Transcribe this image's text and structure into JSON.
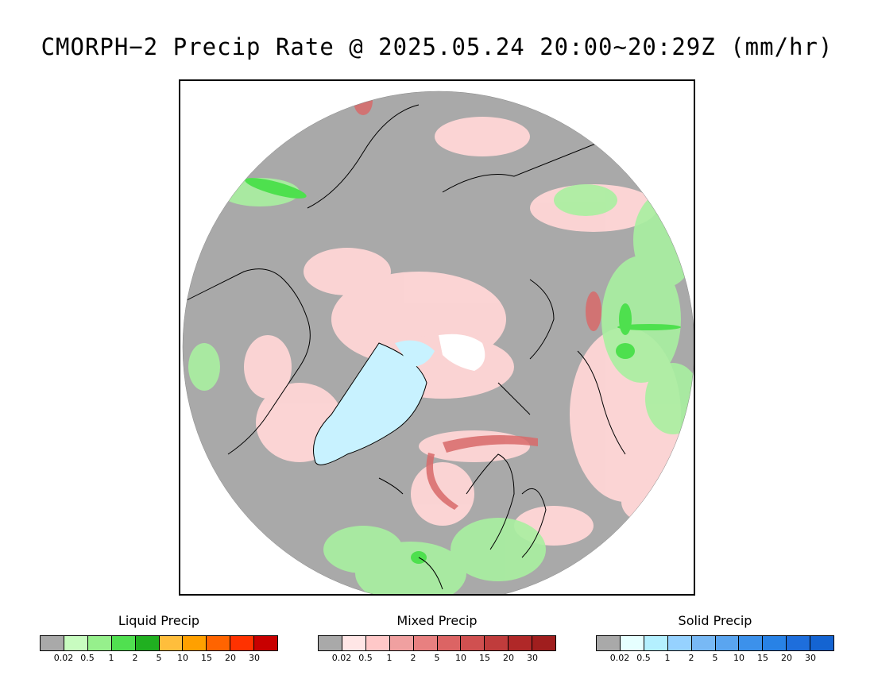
{
  "title": "CMORPH−2 Precip Rate @ 2025.05.24 20:00~20:29Z (mm/hr)",
  "colors": {
    "no_precip": "#a9a9a9",
    "ocean_gray": "#a6a6a6",
    "coast": "#000000",
    "pink": "#ffd6d6",
    "light_green": "#a8f0a0",
    "green": "#4ee04e",
    "red_mixed": "#d86a6a",
    "light_blue": "#c8f2ff",
    "polar_cap": "#ffffff"
  },
  "legends": [
    {
      "title": "Liquid Precip",
      "colors": [
        "#a9a9a9",
        "#c8fcc0",
        "#96f08c",
        "#50e050",
        "#20b020",
        "#ffbe3c",
        "#ffa000",
        "#ff6400",
        "#ff3200",
        "#c80000"
      ],
      "ticks": [
        "0.02",
        "0.5",
        "1",
        "2",
        "5",
        "10",
        "15",
        "20",
        "30"
      ]
    },
    {
      "title": "Mixed Precip",
      "colors": [
        "#a9a9a9",
        "#ffe6e6",
        "#ffc8c8",
        "#f0a0a0",
        "#e88080",
        "#dc6464",
        "#d05050",
        "#c03c3c",
        "#b02828",
        "#a01e1e"
      ],
      "ticks": [
        "0.02",
        "0.5",
        "1",
        "2",
        "5",
        "10",
        "15",
        "20",
        "30"
      ]
    },
    {
      "title": "Solid Precip",
      "colors": [
        "#a9a9a9",
        "#e6ffff",
        "#b4f0ff",
        "#96d2ff",
        "#78b9f5",
        "#5aa5f0",
        "#3c91eb",
        "#2882e6",
        "#1e6edc",
        "#1464d2"
      ],
      "ticks": [
        "0.02",
        "0.5",
        "1",
        "2",
        "5",
        "10",
        "15",
        "20",
        "30"
      ]
    }
  ]
}
